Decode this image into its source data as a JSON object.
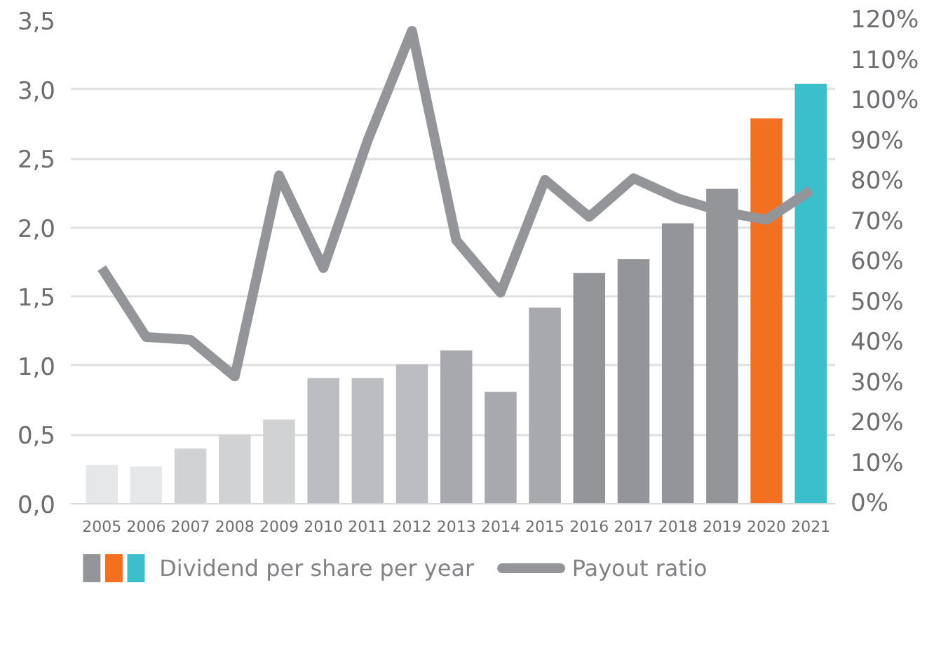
{
  "chart_data": {
    "type": "bar",
    "categories": [
      "2005",
      "2006",
      "2007",
      "2008",
      "2009",
      "2010",
      "2011",
      "2012",
      "2013",
      "2014",
      "2015",
      "2016",
      "2017",
      "2018",
      "2019",
      "2020",
      "2021"
    ],
    "series": [
      {
        "name": "Dividend per share per year",
        "colors": [
          "#e6e7e8",
          "#e6e7e8",
          "#d1d2d4",
          "#d1d2d4",
          "#d1d2d4",
          "#bcbdc0",
          "#bcbdc0",
          "#bcbdc0",
          "#a7a9ac",
          "#a7a9ac",
          "#a7a9ac",
          "#939598",
          "#939598",
          "#939598",
          "#939598",
          "#f37021",
          "#3bbfcc"
        ],
        "values": [
          0.28,
          0.27,
          0.4,
          0.5,
          0.61,
          0.91,
          0.91,
          1.01,
          1.11,
          0.81,
          1.42,
          1.67,
          1.77,
          2.03,
          2.28,
          2.79,
          3.04
        ]
      },
      {
        "name": "Payout ratio",
        "type": "line",
        "axis": "y2",
        "color": "#939598",
        "values": [
          58.5,
          41.4,
          40.7,
          31.6,
          81.5,
          58.5,
          90.2,
          117.4,
          65.4,
          52.4,
          80.4,
          71.2,
          80.8,
          75.8,
          72.5,
          70.5,
          77.8
        ]
      }
    ],
    "ylim": [
      0,
      3.5
    ],
    "yticks": [
      {
        "value": 0,
        "label": "0,0"
      },
      {
        "value": 0.5,
        "label": "0,5"
      },
      {
        "value": 1,
        "label": "1,0"
      },
      {
        "value": 1.5,
        "label": "1,5"
      },
      {
        "value": 2,
        "label": "2,0"
      },
      {
        "value": 2.5,
        "label": "2,5"
      },
      {
        "value": 3,
        "label": "3,0"
      },
      {
        "value": 3.5,
        "label": "3,5"
      }
    ],
    "y2lim": [
      0,
      120
    ],
    "y2ticks": [
      {
        "value": 0,
        "label": "0%"
      },
      {
        "value": 10,
        "label": "10%"
      },
      {
        "value": 20,
        "label": "20%"
      },
      {
        "value": 30,
        "label": "30%"
      },
      {
        "value": 40,
        "label": "40%"
      },
      {
        "value": 50,
        "label": "50%"
      },
      {
        "value": 60,
        "label": "60%"
      },
      {
        "value": 70,
        "label": "70%"
      },
      {
        "value": 80,
        "label": "80%"
      },
      {
        "value": 90,
        "label": "90%"
      },
      {
        "value": 100,
        "label": "100%"
      },
      {
        "value": 110,
        "label": "110%"
      },
      {
        "value": 120,
        "label": "120%"
      }
    ],
    "grid": "y",
    "legend": "bottom"
  }
}
